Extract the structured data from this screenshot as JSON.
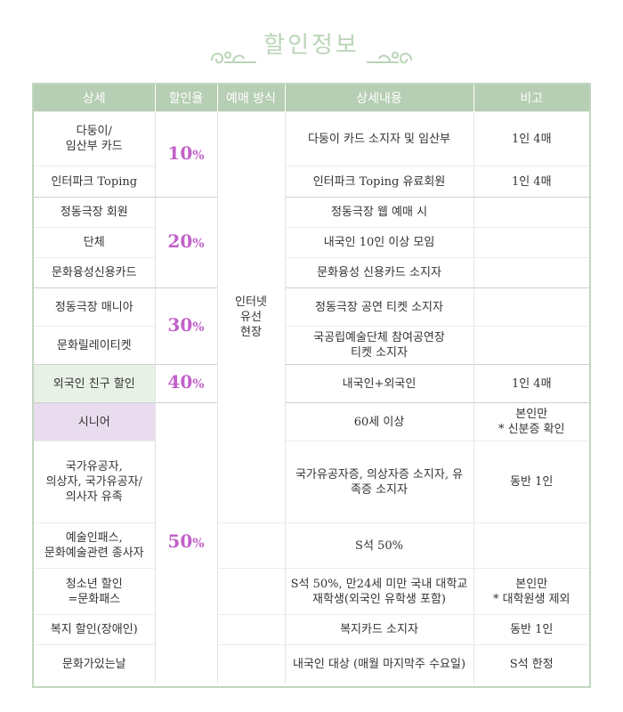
{
  "title": "할인정보",
  "table": {
    "headers": [
      "상세",
      "할인율",
      "예매 방식",
      "상세내용",
      "비고"
    ],
    "method": [
      "인터넷",
      "유선",
      "현장"
    ],
    "rates": {
      "r10": {
        "num": "10",
        "unit": "%"
      },
      "r20": {
        "num": "20",
        "unit": "%"
      },
      "r30": {
        "num": "30",
        "unit": "%"
      },
      "r40": {
        "num": "40",
        "unit": "%"
      },
      "r50": {
        "num": "50",
        "unit": "%"
      }
    },
    "rows": [
      {
        "detail": [
          "다둥이/",
          "임산부 카드"
        ],
        "content": [
          "다둥이 카드 소지자 및 임산부"
        ],
        "note": [
          "1인 4매"
        ]
      },
      {
        "detail": [
          "인터파크 Toping"
        ],
        "content": [
          "인터파크 Toping 유료회원"
        ],
        "note": [
          "1인 4매"
        ]
      },
      {
        "detail": [
          "정동극장  회원"
        ],
        "content": [
          "정동극장 웹 예매 시"
        ],
        "note": [
          ""
        ]
      },
      {
        "detail": [
          "단체"
        ],
        "content": [
          "내국인 10인 이상 모임"
        ],
        "note": [
          ""
        ]
      },
      {
        "detail": [
          "문화융성신용카드"
        ],
        "content": [
          "문화융성 신용카드 소지자"
        ],
        "note": [
          ""
        ]
      },
      {
        "detail": [
          "정동극장 매니아"
        ],
        "content": [
          "정동극장 공연 티켓 소지자"
        ],
        "note": [
          ""
        ]
      },
      {
        "detail": [
          "문화릴레이티켓"
        ],
        "content": [
          "국공립예술단체 참여공연장",
          "티켓 소지자"
        ],
        "note": [
          ""
        ]
      },
      {
        "detail": [
          "외국인 친구 할인"
        ],
        "content": [
          "내국인+외국인"
        ],
        "note": [
          "1인 4매"
        ]
      },
      {
        "detail": [
          "시니어"
        ],
        "content": [
          "60세 이상"
        ],
        "note": [
          "본인만",
          "* 신분증 확인"
        ]
      },
      {
        "detail": [
          "국가유공자,",
          "의상자, 국가유공자/",
          "의사자 유족"
        ],
        "content": [
          "국가유공자증, 의상자증 소지자, 유",
          "족증 소지자"
        ],
        "note": [
          "동반 1인"
        ]
      },
      {
        "detail": [
          "예술인패스,",
          "문화예술관련 종사자"
        ],
        "content": [
          "S석 50%"
        ],
        "note": [
          ""
        ]
      },
      {
        "detail": [
          "청소년 할인",
          "=문화패스"
        ],
        "content": [
          "S석 50%, 만24세 미만 국내 대학교",
          "재학생(외국인 유학생 포함)"
        ],
        "note": [
          "본인만",
          "* 대학원생 제외"
        ]
      },
      {
        "detail": [
          "복지 할인(장애인)"
        ],
        "content": [
          "복지카드 소지자"
        ],
        "note": [
          "동반 1인"
        ]
      },
      {
        "detail": [
          "문화가있는날"
        ],
        "content": [
          "내국인 대상 (매월 마지막주 수요일)"
        ],
        "note": [
          "S석 한정"
        ]
      }
    ]
  }
}
